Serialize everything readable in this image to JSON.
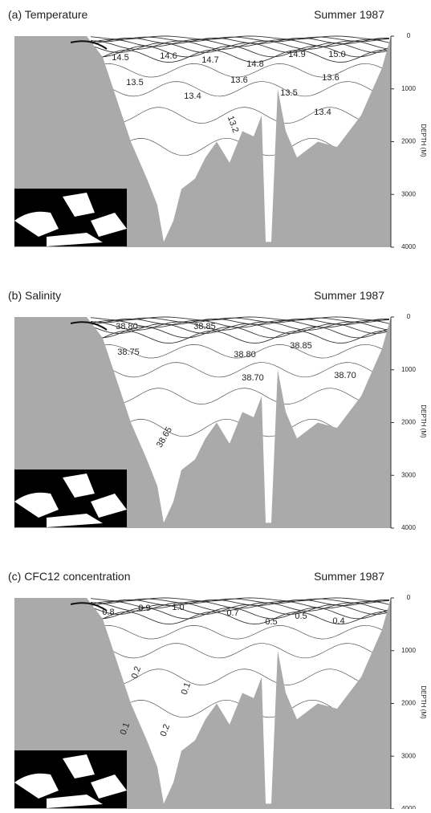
{
  "chart_data": [
    {
      "type": "contour",
      "title": "(a) Temperature",
      "subtitle": "Summer 1987",
      "ylabel": "DEPTH (M)",
      "ylim": [
        0,
        4000
      ],
      "yticks": [
        0,
        1000,
        2000,
        3000,
        4000
      ],
      "contour_labels": [
        "14.5",
        "14.6",
        "14.7",
        "14.8",
        "14.9",
        "15.0",
        "13.5",
        "13.6",
        "13.5",
        "13.6",
        "13.4",
        "13.4",
        "13.2"
      ]
    },
    {
      "type": "contour",
      "title": "(b) Salinity",
      "subtitle": "Summer 1987",
      "ylabel": "DEPTH (M)",
      "ylim": [
        0,
        4000
      ],
      "yticks": [
        0,
        1000,
        2000,
        3000,
        4000
      ],
      "contour_labels": [
        "38.80",
        "38.85",
        "38.75",
        "38.80",
        "38.85",
        "38.70",
        "38.70",
        "38.65"
      ]
    },
    {
      "type": "contour",
      "title": "(c) CFC12 concentration",
      "subtitle": "Summer 1987",
      "ylabel": "DEPTH (M)",
      "ylim": [
        0,
        4000
      ],
      "yticks": [
        0,
        1000,
        2000,
        3000,
        4000
      ],
      "contour_labels": [
        "0.8",
        "0.9",
        "1.0",
        "0.7",
        "0.5",
        "0.5",
        "0.4",
        "0.2",
        "0.1",
        "0.1",
        "0.2"
      ]
    }
  ]
}
